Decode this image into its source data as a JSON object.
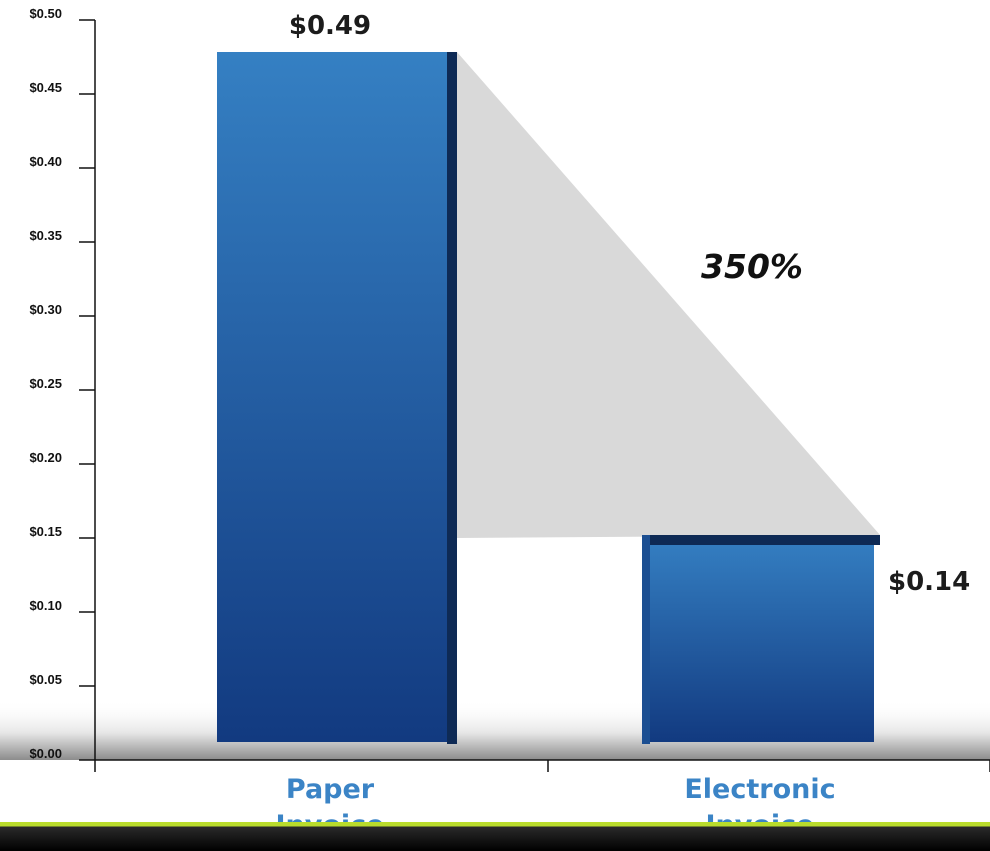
{
  "chart_data": {
    "type": "bar",
    "categories": [
      "Paper\nInvoice",
      "Electronic\nInvoice"
    ],
    "values": [
      0.49,
      0.14
    ],
    "value_labels": [
      "$0.49",
      "$0.14"
    ],
    "ylim": [
      0,
      0.5
    ],
    "yticks": [
      0.0,
      0.05,
      0.1,
      0.15,
      0.2,
      0.25,
      0.3,
      0.35,
      0.4,
      0.45,
      0.5
    ],
    "ytick_labels": [
      "$0.00",
      "$0.05",
      "$0.10",
      "$0.15",
      "$0.20",
      "$0.25",
      "$0.30",
      "$0.35",
      "$0.40",
      "$0.45",
      "$0.50"
    ],
    "annotation": "350%",
    "title": "",
    "xlabel": "",
    "ylabel": "",
    "grid": false,
    "colors": {
      "bar_top": "#3580c3",
      "bar_bottom": "#123a80",
      "bar_edge": "#0e2a55",
      "connector": "#d9d9d9",
      "category_text": "#3b84c6",
      "accent_bar": "#b9dc2c"
    }
  }
}
